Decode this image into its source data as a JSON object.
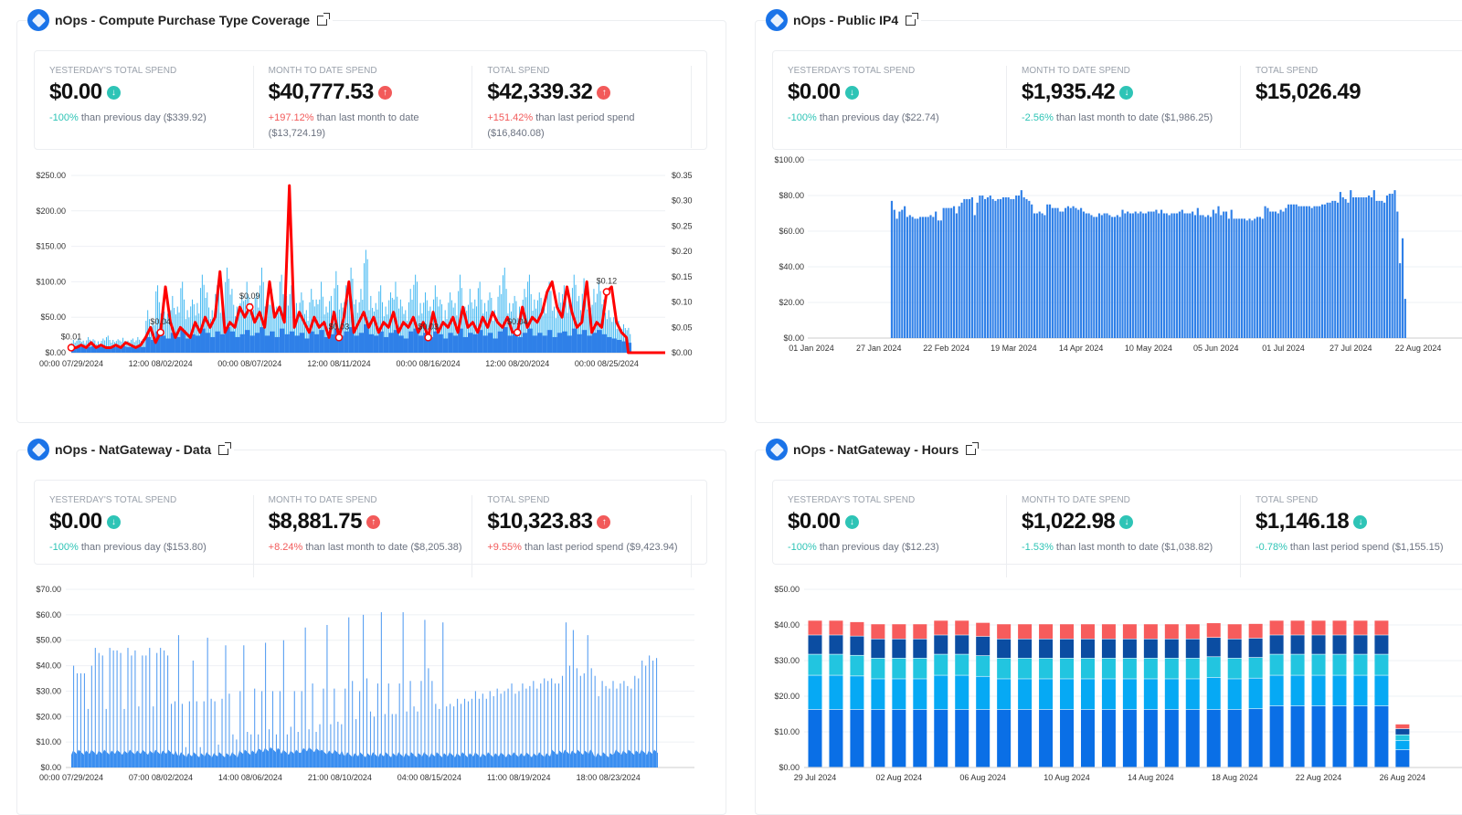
{
  "panels": [
    {
      "title": "nOps - Compute Purchase Type Coverage",
      "stats": [
        {
          "label": "YESTERDAY'S TOTAL SPEND",
          "value": "$0.00",
          "direction": "down",
          "pct": "-100%",
          "text": " than previous day ($339.92)"
        },
        {
          "label": "MONTH TO DATE SPEND",
          "value": "$40,777.53",
          "direction": "up",
          "pct": "+197.12%",
          "text": " than last month to date ($13,724.19)"
        },
        {
          "label": "TOTAL SPEND",
          "value": "$42,339.32",
          "direction": "up",
          "pct": "+151.42%",
          "text": " than last period spend ($16,840.08)"
        }
      ]
    },
    {
      "title": "nOps - Public IP4",
      "stats": [
        {
          "label": "YESTERDAY'S TOTAL SPEND",
          "value": "$0.00",
          "direction": "down",
          "pct": "-100%",
          "text": " than previous day ($22.74)"
        },
        {
          "label": "MONTH TO DATE SPEND",
          "value": "$1,935.42",
          "direction": "down",
          "pct": "-2.56%",
          "text": " than last month to date ($1,986.25)"
        },
        {
          "label": "TOTAL SPEND",
          "value": "$15,026.49",
          "direction": "",
          "pct": "",
          "text": ""
        }
      ]
    },
    {
      "title": "nOps - NatGateway - Data",
      "stats": [
        {
          "label": "YESTERDAY'S TOTAL SPEND",
          "value": "$0.00",
          "direction": "down",
          "pct": "-100%",
          "text": " than previous day ($153.80)"
        },
        {
          "label": "MONTH TO DATE SPEND",
          "value": "$8,881.75",
          "direction": "up",
          "pct": "+8.24%",
          "text": " than last month to date ($8,205.38)"
        },
        {
          "label": "TOTAL SPEND",
          "value": "$10,323.83",
          "direction": "up",
          "pct": "+9.55%",
          "text": " than last period spend ($9,423.94)"
        }
      ]
    },
    {
      "title": "nOps - NatGateway - Hours",
      "stats": [
        {
          "label": "YESTERDAY'S TOTAL SPEND",
          "value": "$0.00",
          "direction": "down",
          "pct": "-100%",
          "text": " than previous day ($12.23)"
        },
        {
          "label": "MONTH TO DATE SPEND",
          "value": "$1,022.98",
          "direction": "down",
          "pct": "-1.53%",
          "text": " than last month to date ($1,038.82)"
        },
        {
          "label": "TOTAL SPEND",
          "value": "$1,146.18",
          "direction": "down",
          "pct": "-0.78%",
          "text": " than last period spend ($1,155.15)"
        }
      ]
    }
  ],
  "colors": {
    "up": "#f25a5a",
    "down": "#2ec4b6",
    "brand": "#1a73e8"
  },
  "chart_data": [
    {
      "type": "bar+line",
      "interval_hours": 6,
      "y_left": {
        "ticks": [
          "$0.00",
          "$50.00",
          "$100.00",
          "$150.00",
          "$200.00",
          "$250.00"
        ],
        "range": [
          0,
          250
        ]
      },
      "y_right": {
        "ticks": [
          "$0.00",
          "$0.05",
          "$0.10",
          "$0.15",
          "$0.20",
          "$0.25",
          "$0.30",
          "$0.35"
        ],
        "range": [
          0,
          0.35
        ]
      },
      "x_ticks": [
        "00:00 07/29/2024",
        "12:00 08/02/2024",
        "00:00 08/07/2024",
        "12:00 08/11/2024",
        "00:00 08/16/2024",
        "12:00 08/20/2024",
        "00:00 08/25/2024"
      ],
      "series": [
        {
          "kind": "bar",
          "color": "#2f80e8",
          "values": [
            8,
            8,
            9,
            8,
            9,
            8,
            8,
            9,
            8,
            8,
            9,
            8,
            8,
            9,
            8,
            22,
            18,
            30,
            24,
            20,
            28,
            22,
            32,
            20,
            26,
            24,
            34,
            28,
            22,
            30,
            26,
            36,
            30,
            22,
            26,
            32,
            24,
            28,
            36,
            24,
            30,
            22,
            34,
            26,
            30,
            24,
            28,
            20,
            30,
            26,
            32,
            22,
            26,
            34,
            24,
            30,
            36,
            24,
            28,
            40,
            26,
            24,
            30,
            22,
            28,
            32,
            24,
            20,
            30,
            34,
            24,
            28,
            22,
            30,
            26,
            20,
            28,
            24,
            34,
            22,
            28,
            26,
            32,
            24,
            28,
            20,
            30,
            36,
            24,
            26,
            22,
            28,
            34,
            24,
            28,
            24,
            32,
            22,
            28,
            30,
            24,
            34,
            26,
            32,
            24,
            28,
            32,
            26,
            22,
            20,
            18,
            16,
            14
          ]
        },
        {
          "kind": "bar",
          "color": "#44b9f2",
          "values": [
            18,
            20,
            17,
            22,
            19,
            16,
            20,
            24,
            18,
            19,
            21,
            17,
            20,
            22,
            19,
            60,
            45,
            95,
            70,
            55,
            80,
            65,
            100,
            60,
            75,
            70,
            110,
            85,
            60,
            95,
            75,
            120,
            90,
            65,
            80,
            100,
            70,
            85,
            120,
            75,
            90,
            65,
            110,
            80,
            95,
            70,
            85,
            60,
            90,
            75,
            100,
            65,
            80,
            115,
            70,
            95,
            120,
            75,
            90,
            145,
            80,
            70,
            95,
            65,
            85,
            100,
            75,
            60,
            90,
            110,
            70,
            85,
            65,
            95,
            75,
            60,
            85,
            70,
            110,
            65,
            90,
            75,
            100,
            70,
            85,
            60,
            95,
            120,
            70,
            80,
            65,
            90,
            110,
            75,
            85,
            70,
            100,
            65,
            85,
            95,
            75,
            110,
            80,
            105,
            70,
            90,
            100,
            75,
            60,
            50,
            45,
            40,
            35
          ]
        },
        {
          "kind": "line",
          "axis": "right",
          "color": "#ff0000",
          "values": [
            0.01,
            0.01,
            0.015,
            0.01,
            0.02,
            0.01,
            0.015,
            0.01,
            0.01,
            0.015,
            0.01,
            0.02,
            0.015,
            0.01,
            0.015,
            0.03,
            0.05,
            0.02,
            0.04,
            0.13,
            0.06,
            0.03,
            0.05,
            0.04,
            0.03,
            0.06,
            0.04,
            0.07,
            0.05,
            0.07,
            0.16,
            0.04,
            0.06,
            0.05,
            0.09,
            0.07,
            0.09,
            0.06,
            0.08,
            0.05,
            0.14,
            0.07,
            0.09,
            0.06,
            0.33,
            0.05,
            0.08,
            0.06,
            0.04,
            0.07,
            0.05,
            0.06,
            0.03,
            0.08,
            0.03,
            0.07,
            0.14,
            0.04,
            0.06,
            0.08,
            0.05,
            0.07,
            0.04,
            0.06,
            0.05,
            0.08,
            0.04,
            0.06,
            0.05,
            0.07,
            0.04,
            0.06,
            0.03,
            0.08,
            0.04,
            0.06,
            0.05,
            0.07,
            0.04,
            0.09,
            0.05,
            0.06,
            0.04,
            0.07,
            0.05,
            0.08,
            0.06,
            0.05,
            0.07,
            0.04,
            0.04,
            0.09,
            0.05,
            0.07,
            0.06,
            0.08,
            0.12,
            0.14,
            0.09,
            0.07,
            0.13,
            0.08,
            0.05,
            0.06,
            0.14,
            0.04,
            0.06,
            0.05,
            0.12,
            0.13,
            0.06,
            0.04,
            0.03
          ],
          "tail_zero_points": 8
        }
      ],
      "point_labels": [
        {
          "i": 0,
          "label": "$0.01"
        },
        {
          "i": 18,
          "label": "$0.04"
        },
        {
          "i": 36,
          "label": "$0.09"
        },
        {
          "i": 54,
          "label": "$0.03"
        },
        {
          "i": 72,
          "label": "$0.03"
        },
        {
          "i": 90,
          "label": "$0.04"
        },
        {
          "i": 108,
          "label": "$0.12"
        }
      ]
    },
    {
      "type": "bar",
      "first_bar": "01 Feb 2024",
      "interval": "daily",
      "color": "#2f80e8",
      "y": {
        "ticks": [
          "$0.00",
          "$20.00",
          "$40.00",
          "$60.00",
          "$80.00",
          "$100.00"
        ],
        "range": [
          0,
          100
        ]
      },
      "x_ticks": [
        "01 Jan 2024",
        "27 Jan 2024",
        "22 Feb 2024",
        "19 Mar 2024",
        "14 Apr 2024",
        "10 May 2024",
        "05 Jun 2024",
        "01 Jul 2024",
        "27 Jul 2024",
        "22 Aug 2024"
      ],
      "values": [
        77,
        72,
        67,
        71,
        72,
        74,
        68,
        69,
        68,
        67,
        67,
        68,
        68,
        68,
        68,
        69,
        68,
        71,
        66,
        66,
        73,
        73,
        73,
        73,
        74,
        70,
        74,
        76,
        78,
        78,
        78,
        79,
        69,
        76,
        80,
        80,
        78,
        79,
        80,
        78,
        77,
        78,
        78,
        79,
        79,
        79,
        78,
        78,
        80,
        80,
        83,
        79,
        78,
        77,
        75,
        70,
        70,
        71,
        70,
        69,
        75,
        75,
        73,
        73,
        73,
        71,
        71,
        73,
        74,
        73,
        74,
        73,
        72,
        73,
        71,
        70,
        70,
        69,
        68,
        68,
        70,
        69,
        70,
        70,
        69,
        68,
        68,
        69,
        68,
        72,
        70,
        71,
        70,
        70,
        71,
        70,
        71,
        70,
        70,
        71,
        71,
        71,
        72,
        70,
        72,
        70,
        70,
        69,
        70,
        70,
        70,
        71,
        72,
        70,
        70,
        70,
        71,
        69,
        73,
        69,
        69,
        68,
        69,
        68,
        72,
        70,
        74,
        69,
        71,
        71,
        67,
        72,
        67,
        67,
        67,
        67,
        67,
        66,
        67,
        66,
        67,
        68,
        68,
        67,
        74,
        73,
        71,
        71,
        71,
        70,
        72,
        71,
        73,
        75,
        75,
        75,
        75,
        74,
        74,
        74,
        74,
        74,
        73,
        74,
        74,
        74,
        75,
        75,
        76,
        76,
        77,
        77,
        76,
        82,
        79,
        78,
        76,
        83,
        79,
        79,
        79,
        79,
        79,
        79,
        80,
        79,
        83,
        77,
        77,
        77,
        76,
        80,
        81,
        81,
        83,
        71,
        42,
        56,
        22
      ]
    },
    {
      "type": "bar",
      "interval": "hourly",
      "color": "#3a8ef0",
      "y": {
        "ticks": [
          "$0.00",
          "$10.00",
          "$20.00",
          "$30.00",
          "$40.00",
          "$50.00",
          "$60.00",
          "$70.00"
        ],
        "range": [
          0,
          70
        ]
      },
      "x_ticks": [
        "00:00 07/29/2024",
        "07:00 08/02/2024",
        "14:00 08/06/2024",
        "21:00 08/10/2024",
        "04:00 08/15/2024",
        "11:00 08/19/2024",
        "18:00 08/23/2024"
      ],
      "baseline_daily": [
        6,
        6,
        6,
        6,
        6,
        5,
        5,
        5,
        6,
        7,
        6,
        7,
        6,
        5,
        5,
        5,
        5,
        5,
        5,
        5,
        5,
        5,
        5,
        6,
        6,
        5,
        6,
        6
      ],
      "spikes": [
        40,
        37,
        37,
        37,
        23,
        40,
        47,
        45,
        44,
        23,
        47,
        46,
        46,
        45,
        23,
        47,
        44,
        46,
        24,
        44,
        44,
        47,
        24,
        45,
        47,
        46,
        44,
        25,
        26,
        52,
        25,
        8,
        26,
        42,
        26,
        8,
        26,
        51,
        27,
        26,
        9,
        27,
        48,
        29,
        13,
        11,
        30,
        48,
        14,
        13,
        31,
        13,
        30,
        49,
        15,
        30,
        13,
        30,
        50,
        13,
        16,
        30,
        14,
        30,
        55,
        15,
        33,
        14,
        17,
        31,
        56,
        17,
        31,
        18,
        17,
        31,
        59,
        34,
        19,
        30,
        60,
        35,
        22,
        20,
        33,
        61,
        21,
        33,
        21,
        21,
        33,
        61,
        22,
        34,
        24,
        22,
        34,
        58,
        39,
        34,
        25,
        23,
        57,
        24,
        25,
        24,
        27,
        25,
        27,
        26,
        27,
        30,
        27,
        29,
        27,
        30,
        28,
        31,
        29,
        30,
        31,
        33,
        29,
        30,
        33,
        31,
        32,
        34,
        31,
        33,
        35,
        34,
        35,
        33,
        33,
        36,
        57,
        40,
        54,
        39,
        36,
        37,
        52,
        39,
        36,
        28,
        34,
        32,
        31,
        34,
        31,
        33,
        34,
        32,
        31,
        36,
        35,
        42,
        40,
        44,
        42,
        43
      ]
    },
    {
      "type": "stacked_bar",
      "y": {
        "ticks": [
          "$0.00",
          "$10.00",
          "$20.00",
          "$30.00",
          "$40.00",
          "$50.00"
        ],
        "range": [
          0,
          50
        ]
      },
      "x_ticks": [
        "29 Jul 2024",
        "02 Aug 2024",
        "06 Aug 2024",
        "10 Aug 2024",
        "14 Aug 2024",
        "18 Aug 2024",
        "22 Aug 2024",
        "26 Aug 2024"
      ],
      "series_colors": [
        "#0a6fe6",
        "#06a9f4",
        "#22c5e0",
        "#0b4da2",
        "#f75c5c"
      ],
      "bars": [
        [
          16.2,
          9.6,
          5.9,
          5.4,
          4.1
        ],
        [
          16.2,
          9.6,
          5.9,
          5.4,
          4.1
        ],
        [
          16.2,
          9.4,
          5.8,
          5.4,
          4.0
        ],
        [
          16.2,
          8.6,
          5.8,
          5.4,
          4.2
        ],
        [
          16.2,
          8.6,
          5.8,
          5.4,
          4.2
        ],
        [
          16.2,
          8.6,
          5.8,
          5.4,
          4.2
        ],
        [
          16.2,
          9.6,
          5.9,
          5.4,
          4.1
        ],
        [
          16.2,
          9.6,
          5.9,
          5.4,
          4.1
        ],
        [
          16.2,
          9.3,
          5.8,
          5.4,
          3.9
        ],
        [
          16.2,
          8.6,
          5.8,
          5.4,
          4.2
        ],
        [
          16.2,
          8.6,
          5.8,
          5.4,
          4.2
        ],
        [
          16.2,
          8.6,
          5.8,
          5.4,
          4.2
        ],
        [
          16.2,
          8.6,
          5.8,
          5.4,
          4.2
        ],
        [
          16.2,
          8.6,
          5.8,
          5.4,
          4.2
        ],
        [
          16.2,
          8.6,
          5.8,
          5.4,
          4.2
        ],
        [
          16.2,
          8.6,
          5.8,
          5.4,
          4.2
        ],
        [
          16.2,
          8.6,
          5.8,
          5.4,
          4.2
        ],
        [
          16.2,
          8.6,
          5.8,
          5.4,
          4.2
        ],
        [
          16.2,
          8.6,
          5.8,
          5.4,
          4.2
        ],
        [
          16.2,
          9.0,
          5.8,
          5.4,
          4.1
        ],
        [
          16.2,
          8.6,
          5.8,
          5.4,
          4.2
        ],
        [
          16.4,
          8.6,
          5.8,
          5.4,
          4.1
        ],
        [
          17.2,
          8.6,
          5.9,
          5.4,
          4.1
        ],
        [
          17.2,
          8.6,
          5.9,
          5.4,
          4.1
        ],
        [
          17.2,
          8.6,
          5.9,
          5.4,
          4.1
        ],
        [
          17.2,
          8.6,
          5.9,
          5.4,
          4.1
        ],
        [
          17.2,
          8.6,
          5.9,
          5.4,
          4.1
        ],
        [
          17.2,
          8.6,
          5.9,
          5.4,
          4.1
        ],
        [
          4.9,
          2.6,
          1.6,
          1.7,
          1.3
        ]
      ]
    }
  ]
}
